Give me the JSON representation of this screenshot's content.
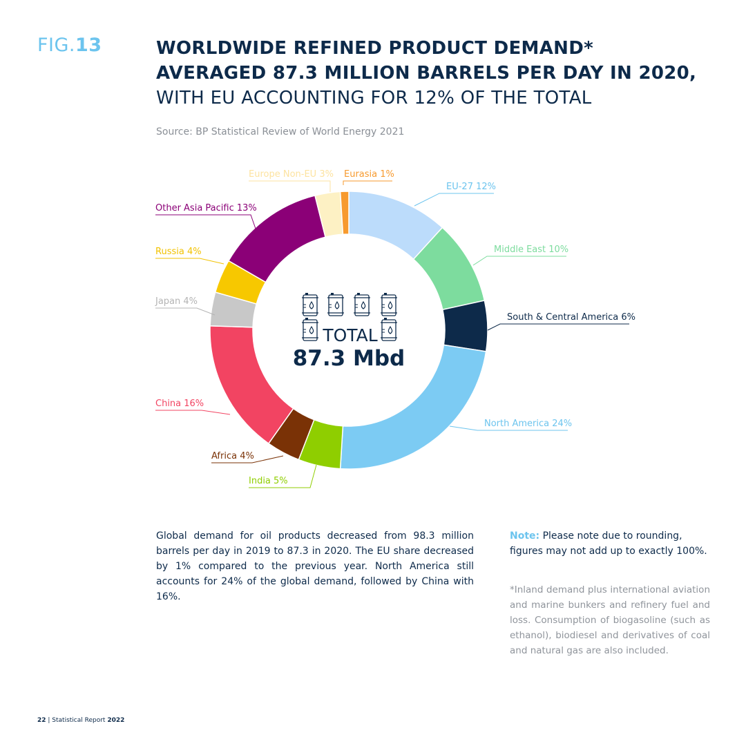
{
  "header": {
    "fig_prefix": "FIG.",
    "fig_number": "13",
    "title_bold": "WORLDWIDE REFINED PRODUCT DEMAND* AVERAGED 87.3 MILLION BARRELS PER DAY IN 2020,",
    "title_light": " WITH EU ACCOUNTING FOR 12% OF THE TOTAL",
    "source": "Source: BP Statistical Review of World Energy 2021"
  },
  "chart_data": {
    "type": "pie",
    "center_label": "TOTAL",
    "center_value": "87.3 Mbd",
    "slices": [
      {
        "name": "EU-27",
        "label": "EU-27 12%",
        "value": 12,
        "color": "#bcdcfb"
      },
      {
        "name": "Middle East",
        "label": "Middle East 10%",
        "value": 10,
        "color": "#7ddc9e"
      },
      {
        "name": "South & Central America",
        "label": "South & Central America 6%",
        "value": 6,
        "color": "#0d2a4a"
      },
      {
        "name": "North America",
        "label": "North America 24%",
        "value": 24,
        "color": "#7ccbf3"
      },
      {
        "name": "India",
        "label": "India 5%",
        "value": 5,
        "color": "#8fce00"
      },
      {
        "name": "Africa",
        "label": "Africa 4%",
        "value": 4,
        "color": "#7a3206"
      },
      {
        "name": "China",
        "label": "China 16%",
        "value": 16,
        "color": "#f24462"
      },
      {
        "name": "Japan",
        "label": "Japan 4%",
        "value": 4,
        "color": "#c8c8c8"
      },
      {
        "name": "Russia",
        "label": "Russia 4%",
        "value": 4,
        "color": "#f7c800"
      },
      {
        "name": "Other Asia Pacific",
        "label": "Other Asia Pacific 13%",
        "value": 13,
        "color": "#8b0077"
      },
      {
        "name": "Europe Non-EU",
        "label": "Europe Non-EU 3%",
        "value": 3,
        "color": "#fdf1c4"
      },
      {
        "name": "Eurasia",
        "label": "Eurasia 1%",
        "value": 1,
        "color": "#f79a2e"
      }
    ],
    "label_colors": [
      "#6cc4ee",
      "#7ddc9e",
      "#0d2a4a",
      "#6cc4ee",
      "#8fce00",
      "#7a3206",
      "#f24462",
      "#b4b4b4",
      "#f2c200",
      "#8b0077",
      "#fde3a0",
      "#f79a2e"
    ]
  },
  "body": {
    "paragraph": "Global demand for oil products decreased from 98.3 million barrels per day in 2019 to 87.3 in 2020. The EU share decreased by 1% compared to the previous year. North America still accounts for 24% of the global demand, followed by China with 16%.",
    "note_label": "Note:",
    "note_text": " Please note due to rounding, figures may not add up to exactly 100%.",
    "footnote": "*Inland demand plus international aviation and marine bunkers and refinery fuel and loss. Consumption of biogasoline (such as ethanol), biodiesel and derivatives of coal and natural gas are also included."
  },
  "footer": {
    "page": "22",
    "separator": " | ",
    "title": "Statistical Report ",
    "year": "2022"
  }
}
